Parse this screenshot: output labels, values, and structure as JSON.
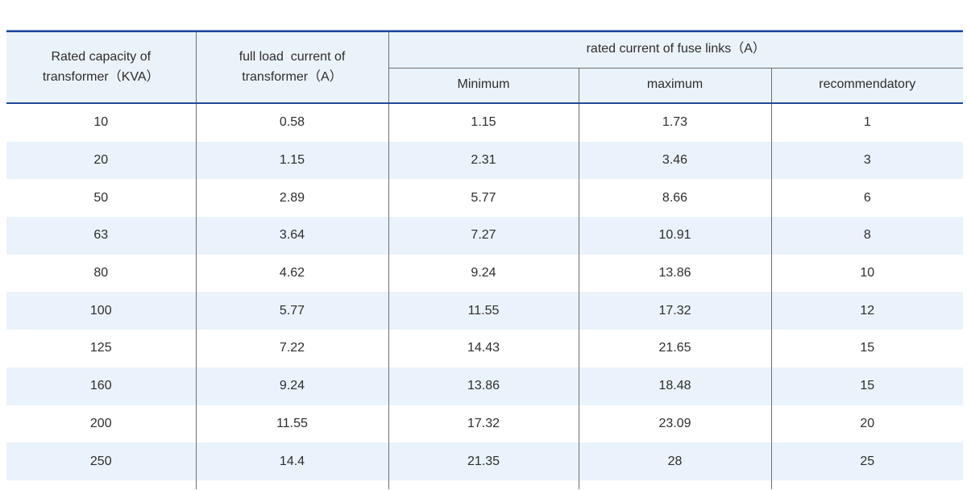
{
  "table": {
    "headers": {
      "capacity": "Rated capacity of\ntransformer（KVA）",
      "full_load": "full load  current of\ntransformer（A）",
      "fuse_links_group": "rated current of fuse links（A）",
      "minimum": "Minimum",
      "maximum": "maximum",
      "recommendatory": "recommendatory"
    },
    "rows": [
      {
        "capacity": "10",
        "full_load": "0.58",
        "minimum": "1.15",
        "maximum": "1.73",
        "recommendatory": "1"
      },
      {
        "capacity": "20",
        "full_load": "1.15",
        "minimum": "2.31",
        "maximum": "3.46",
        "recommendatory": "3"
      },
      {
        "capacity": "50",
        "full_load": "2.89",
        "minimum": "5.77",
        "maximum": "8.66",
        "recommendatory": "6"
      },
      {
        "capacity": "63",
        "full_load": "3.64",
        "minimum": "7.27",
        "maximum": "10.91",
        "recommendatory": "8"
      },
      {
        "capacity": "80",
        "full_load": "4.62",
        "minimum": "9.24",
        "maximum": "13.86",
        "recommendatory": "10"
      },
      {
        "capacity": "100",
        "full_load": "5.77",
        "minimum": "11.55",
        "maximum": "17.32",
        "recommendatory": "12"
      },
      {
        "capacity": "125",
        "full_load": "7.22",
        "minimum": "14.43",
        "maximum": "21.65",
        "recommendatory": "15"
      },
      {
        "capacity": "160",
        "full_load": "9.24",
        "minimum": "13.86",
        "maximum": "18.48",
        "recommendatory": "15"
      },
      {
        "capacity": "200",
        "full_load": "11.55",
        "minimum": "17.32",
        "maximum": "23.09",
        "recommendatory": "20"
      },
      {
        "capacity": "250",
        "full_load": "14.4",
        "minimum": "21.35",
        "maximum": "28",
        "recommendatory": "25"
      }
    ],
    "colors": {
      "accent_rule": "#1e479d",
      "accent_rule_light": "#7e97cd",
      "header_bg": "#ebf3fa",
      "row_alt_bg": "#eaf3fb",
      "grid_line": "#6e6e6e",
      "text": "#2d2d2d"
    }
  }
}
